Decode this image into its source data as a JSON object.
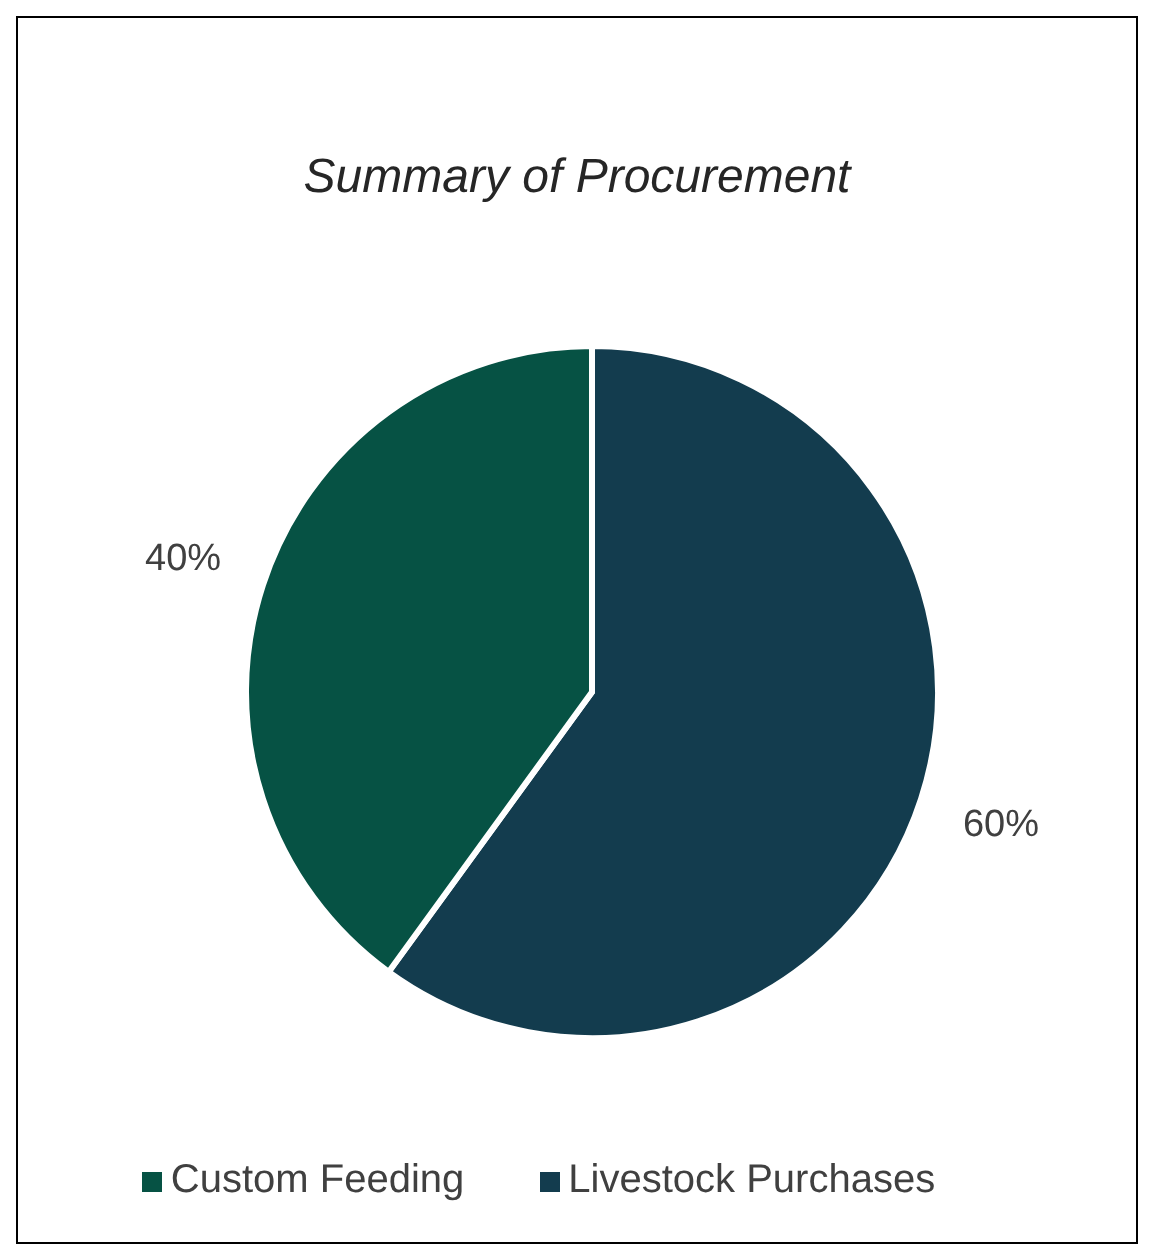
{
  "chart_data": {
    "type": "pie",
    "subtitle": "Summary of Procurement",
    "categories": [
      "Livestock Purchases",
      "Custom Feeding"
    ],
    "values": [
      60,
      40
    ],
    "colors": [
      "#133c4e",
      "#065244"
    ],
    "value_labels": [
      "60%",
      "40%"
    ],
    "legend": "bottom"
  }
}
